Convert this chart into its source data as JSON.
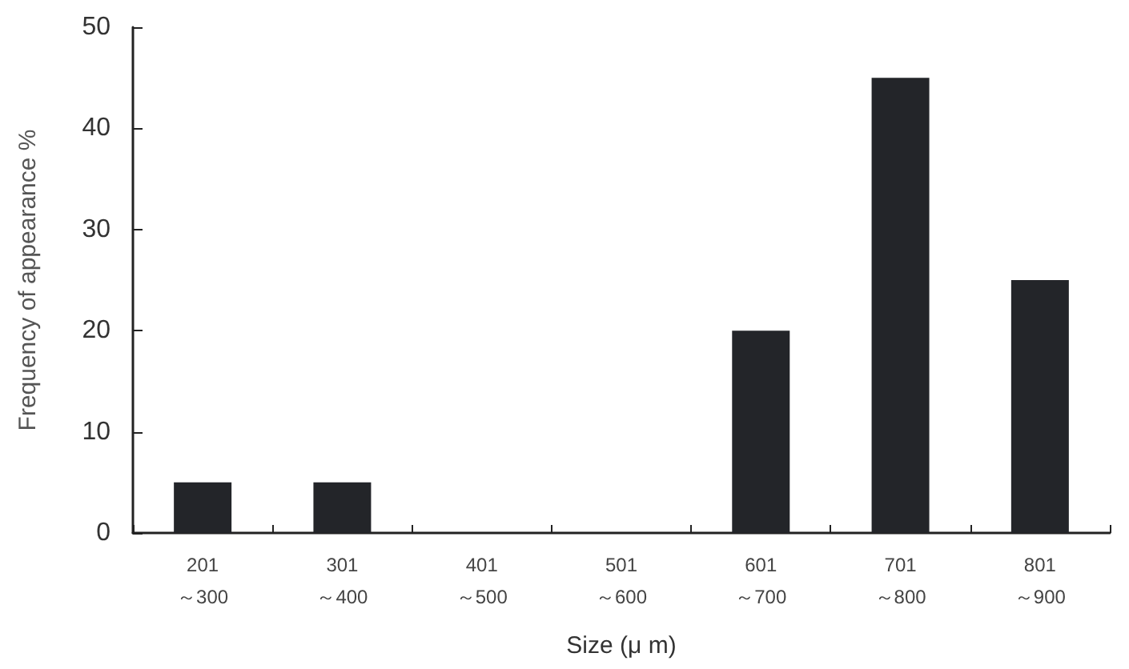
{
  "chart_data": {
    "type": "bar",
    "xlabel": "Size (μ m)",
    "ylabel": "Frequency of appearance %",
    "categories": [
      "201\n～300",
      "301\n～400",
      "401\n～500",
      "501\n～600",
      "601\n～700",
      "701\n～800",
      "801\n～900"
    ],
    "values": [
      5,
      5,
      0,
      0,
      20,
      45,
      25
    ],
    "color": "#232529",
    "ylim": [
      0,
      50
    ],
    "yticks": [
      0,
      10,
      20,
      30,
      40,
      50
    ],
    "grid": false
  }
}
